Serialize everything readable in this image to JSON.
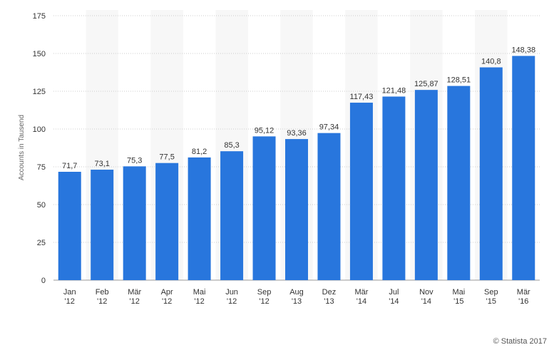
{
  "chart_data": {
    "type": "bar",
    "categories": [
      [
        "Jan",
        "'12"
      ],
      [
        "Feb",
        "'12"
      ],
      [
        "Mär",
        "'12"
      ],
      [
        "Apr",
        "'12"
      ],
      [
        "Mai",
        "'12"
      ],
      [
        "Jun",
        "'12"
      ],
      [
        "Sep",
        "'12"
      ],
      [
        "Aug",
        "'13"
      ],
      [
        "Dez",
        "'13"
      ],
      [
        "Mär",
        "'14"
      ],
      [
        "Jul",
        "'14"
      ],
      [
        "Nov",
        "'14"
      ],
      [
        "Mai",
        "'15"
      ],
      [
        "Sep",
        "'15"
      ],
      [
        "Mär",
        "'16"
      ]
    ],
    "values": [
      71.7,
      73.1,
      75.3,
      77.5,
      81.2,
      85.3,
      95.12,
      93.36,
      97.34,
      117.43,
      121.48,
      125.87,
      128.51,
      140.8,
      148.38
    ],
    "value_labels": [
      "71,7",
      "73,1",
      "75,3",
      "77,5",
      "81,2",
      "85,3",
      "95,12",
      "93,36",
      "97,34",
      "117,43",
      "121,48",
      "125,87",
      "128,51",
      "140,8",
      "148,38"
    ],
    "ylabel": "Accounts in Tausend",
    "ylim": [
      0,
      175
    ],
    "yticks": [
      0,
      25,
      50,
      75,
      100,
      125,
      150,
      175
    ],
    "grid": true,
    "bar_color": "#2876dd",
    "band_color": "#f7f7f7"
  },
  "credit": "© Statista 2017"
}
